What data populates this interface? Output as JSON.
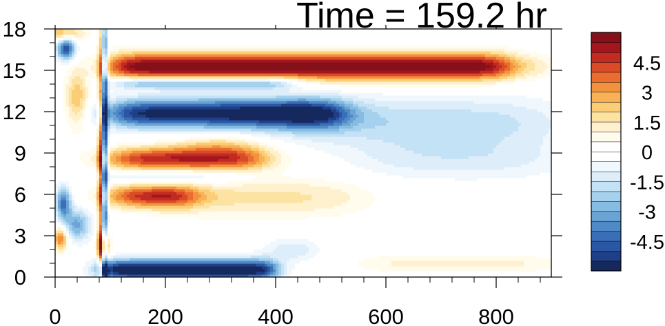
{
  "chart_data": {
    "type": "heatmap",
    "title": "Time = 159.2 hr",
    "xlabel": "",
    "ylabel": "",
    "xlim": [
      0,
      900
    ],
    "ylim": [
      0,
      18
    ],
    "x_ticks": [
      0,
      200,
      400,
      600,
      800
    ],
    "x_tick_labels": [
      "0",
      "200",
      "400",
      "600",
      "800"
    ],
    "y_ticks": [
      0,
      3,
      6,
      9,
      12,
      15,
      18
    ],
    "y_tick_labels": [
      "0",
      "3",
      "6",
      "9",
      "12",
      "15",
      "18"
    ],
    "grid": false,
    "colorbar": {
      "placement": "right",
      "levels": [
        -6,
        -5.5,
        -5,
        -4.5,
        -4,
        -3.5,
        -3,
        -2.5,
        -2,
        -1.5,
        -1,
        -0.5,
        0,
        0.5,
        1,
        1.5,
        2,
        2.5,
        3,
        3.5,
        4,
        4.5,
        5,
        5.5
      ],
      "colors": [
        "#16295e",
        "#1f3f86",
        "#2a56a3",
        "#3a6fb8",
        "#4f8ac7",
        "#6aa3d4",
        "#86bce2",
        "#a6d1ee",
        "#c4e2f5",
        "#ddeefa",
        "#f0f8fd",
        "#ffffff",
        "#ffffff",
        "#fffcee",
        "#fff1cd",
        "#fde3a2",
        "#fbcd76",
        "#f8b255",
        "#f3923e",
        "#ea6c30",
        "#d94a27",
        "#c22b22",
        "#a3161e",
        "#861019"
      ],
      "tick_values": [
        4.5,
        3,
        1.5,
        0,
        -1.5,
        -3,
        -4.5
      ],
      "tick_labels": [
        "4.5",
        "3",
        "1.5",
        "0",
        "-1.5",
        "-3",
        "-4.5"
      ]
    },
    "features": [
      {
        "x": [
          80,
          890
        ],
        "y": 15.3,
        "value": 5.5,
        "note": "strong positive band"
      },
      {
        "x": [
          100,
          560
        ],
        "y": 11.9,
        "value": -5.0,
        "note": "strong negative band"
      },
      {
        "x": [
          100,
          380
        ],
        "y": 8.6,
        "value": 4.5
      },
      {
        "x": [
          100,
          250
        ],
        "y": 5.9,
        "value": 4.0
      },
      {
        "x": [
          80,
          400
        ],
        "y": 0.6,
        "value": -5.0
      },
      {
        "x": [
          0,
          30
        ],
        "y": 16.5,
        "value": -4.5
      },
      {
        "x": [
          0,
          30
        ],
        "y": 5.4,
        "value": -4.0
      },
      {
        "x": [
          80,
          100
        ],
        "y": [
          1,
          17
        ],
        "value": -5.0,
        "note": "narrow vertical streak"
      }
    ]
  }
}
